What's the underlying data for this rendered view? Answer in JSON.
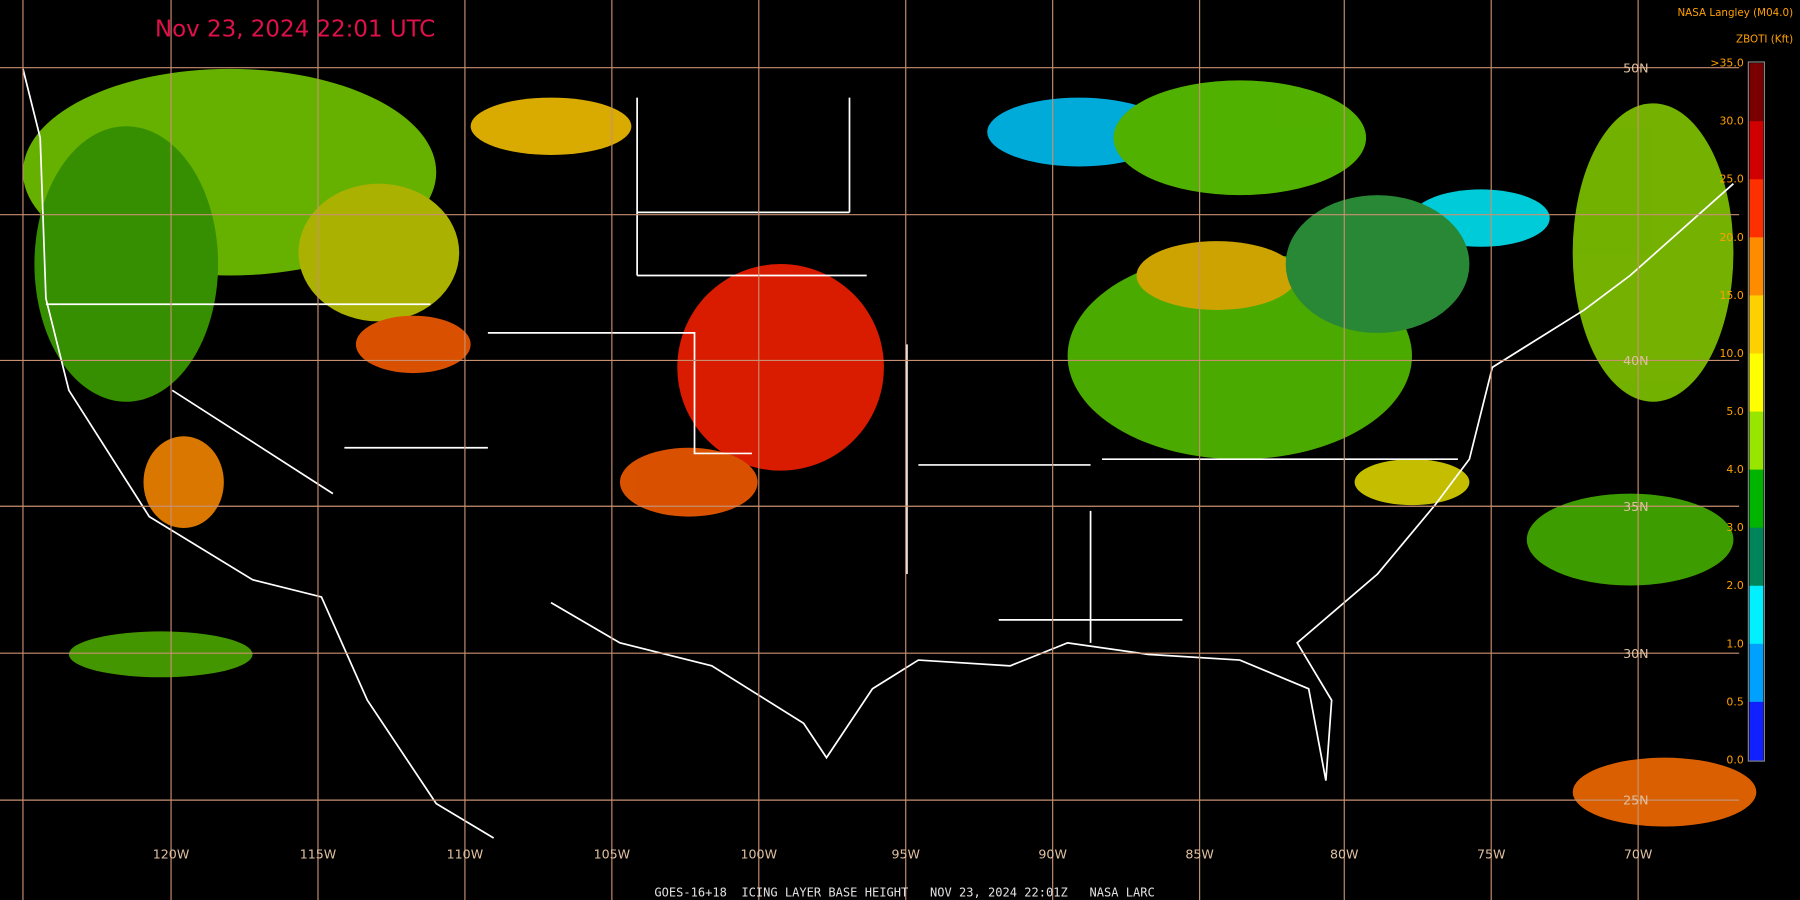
{
  "header": {
    "title": "Nov 23, 2024 22:01 UTC",
    "source": "NASA Langley (M04.0)",
    "product": "ZBOTI (Kft)"
  },
  "colorbar": {
    "labels": [
      ">35.0",
      "30.0",
      "25.0",
      "20.0",
      "15.0",
      "10.0",
      "5.0",
      "4.0",
      "3.0",
      "2.0",
      "1.0",
      "0.5",
      "0.0"
    ],
    "colors": [
      "#7a0000",
      "#d00000",
      "#ff3000",
      "#ff8c00",
      "#ffd000",
      "#ffff00",
      "#98e600",
      "#00b400",
      "#00845a",
      "#00f0ff",
      "#00a0ff",
      "#1020ff",
      "#9050f0"
    ]
  },
  "grid": {
    "longitudes": [
      "120W",
      "115W",
      "110W",
      "105W",
      "100W",
      "95W",
      "90W",
      "85W",
      "80W",
      "75W",
      "70W"
    ],
    "latitudes": [
      "50N",
      "40N",
      "35N",
      "30N",
      "25N"
    ]
  },
  "footer": "GOES-16+18  ICING LAYER BASE HEIGHT   NOV 23, 2024 22:01Z   NASA LARC"
}
